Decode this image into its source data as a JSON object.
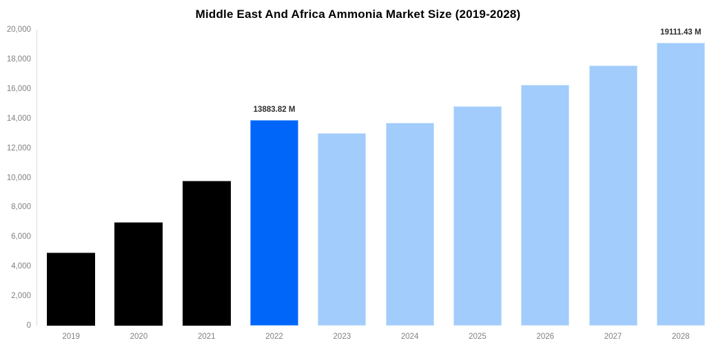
{
  "chart_data": {
    "type": "bar",
    "title": "Middle East And Africa Ammonia Market Size (2019-2028)",
    "categories": [
      "2019",
      "2020",
      "2021",
      "2022",
      "2023",
      "2024",
      "2025",
      "2026",
      "2027",
      "2028"
    ],
    "values": [
      4950,
      6990,
      9780,
      13883.82,
      13010,
      13730,
      14820,
      16270,
      17580,
      19111.43
    ],
    "unit": "M",
    "xlabel": "",
    "ylabel": "",
    "ylim": [
      0,
      20000
    ],
    "ytick_step": 2000,
    "ytick_labels": [
      "0",
      "2,000",
      "4,000",
      "6,000",
      "8,000",
      "10,000",
      "12,000",
      "14,000",
      "16,000",
      "18,000",
      "20,000"
    ],
    "grid": false,
    "legend": "none",
    "bar_colors": [
      "#000000",
      "#000000",
      "#000000",
      "#0066fa",
      "#a1ccfb",
      "#a1ccfb",
      "#a1ccfb",
      "#a1ccfb",
      "#a1ccfb",
      "#a1ccfb"
    ],
    "annotations": [
      {
        "category": "2022",
        "index": 3,
        "text": "13883.82 M"
      },
      {
        "category": "2028",
        "index": 9,
        "text": "19111.43 M"
      }
    ],
    "colors": {
      "highlight_bar": "#0066fa",
      "forecast_bar": "#a1ccfb",
      "historical_bar": "#000000",
      "axis_line": "#dcdcdc",
      "tick_label": "#808080",
      "annotation_text": "#2d2d2d",
      "title_text": "#000000"
    }
  }
}
